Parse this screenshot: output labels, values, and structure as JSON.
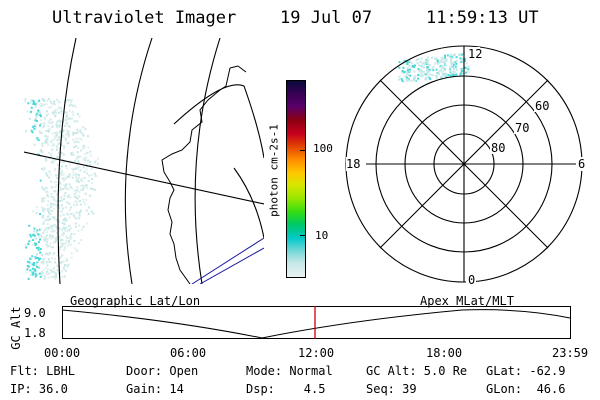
{
  "header": {
    "title": "Ultraviolet Imager",
    "date": "19 Jul 07",
    "time": "11:59:13 UT"
  },
  "colorbar": {
    "unit_label": "photon cm-2s-1",
    "ticks": [
      "100",
      "10"
    ],
    "colors": [
      "#0a0a3c",
      "#3a0055",
      "#5a006a",
      "#8a0010",
      "#c8001e",
      "#e04000",
      "#ff8c00",
      "#ffc800",
      "#d8e600",
      "#96e600",
      "#32dc14",
      "#00c864",
      "#00c8c8",
      "#7ad8d8",
      "#c8e8e8",
      "#eaf2f2"
    ]
  },
  "polar": {
    "mlt_labels": [
      "12",
      "18",
      "6",
      "0"
    ],
    "lat_labels": [
      "60",
      "70",
      "80"
    ]
  },
  "timeline": {
    "left_label": "Geographic Lat/Lon",
    "right_label": "Apex MLat/MLT",
    "axis_title": "GC Alt",
    "y_top": "9.0",
    "y_bottom": "1.8",
    "ticks": [
      "00:00",
      "06:00",
      "12:00",
      "18:00",
      "23:59"
    ],
    "marker_color": "#cc0000"
  },
  "status": {
    "flt": "Flt: LBHL",
    "ip": "IP: 36.0",
    "door": "Door: Open",
    "gain": "Gain: 14",
    "mode": "Mode: Normal",
    "dsp": "Dsp:    4.5",
    "gcalt": "GC Alt: 5.0 Re",
    "seq": "Seq: 39",
    "glat": "GLat: -62.9",
    "glon": "GLon:  46.6"
  },
  "palette": {
    "aurora": "#48d8d8",
    "coast": "#000000",
    "track": "#1a1aa0"
  }
}
